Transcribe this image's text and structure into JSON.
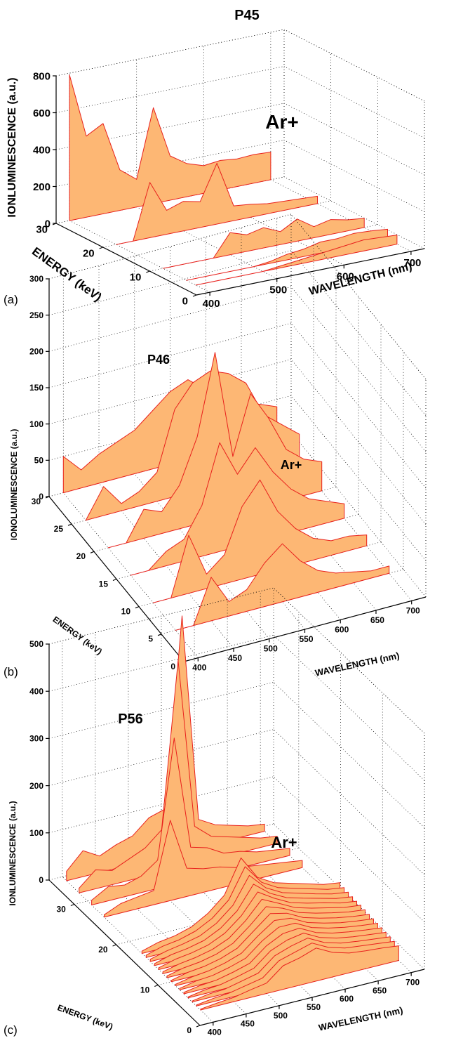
{
  "figure": {
    "fill_color": "#FDB774",
    "edge_color": "#E8201C",
    "ridge_highlight_color": "#FFE600"
  },
  "chart_data": [
    {
      "type": "waterfall3d",
      "panel": "(a)",
      "title": "P45",
      "annotation": "Ar+",
      "xlabel": "WAVELENGTH (nm)",
      "ylabel": "ENERGY (keV)",
      "zlabel": "IONLUMINESCENCE (a.u.)",
      "xlim": [
        380,
        720
      ],
      "ylim": [
        0,
        30
      ],
      "zlim": [
        0,
        800
      ],
      "xticks": [
        "400",
        "500",
        "600",
        "700"
      ],
      "yticks": [
        "0",
        "10",
        "20",
        "30"
      ],
      "zticks": [
        "0",
        "200",
        "400",
        "600",
        "800"
      ],
      "x": [
        400,
        425,
        450,
        475,
        500,
        525,
        550,
        575,
        600,
        625,
        650,
        675,
        700
      ],
      "series": [
        {
          "energy": 30,
          "values": [
            790,
            440,
            490,
            220,
            150,
            520,
            240,
            180,
            150,
            160,
            150,
            155,
            150
          ]
        },
        {
          "energy": 20,
          "values": [
            0,
            0,
            300,
            130,
            160,
            140,
            330,
            80,
            70,
            55,
            50,
            45,
            40
          ]
        },
        {
          "energy": 10,
          "values": [
            0,
            0,
            0,
            0,
            120,
            90,
            110,
            70,
            120,
            60,
            80,
            60,
            50
          ]
        },
        {
          "energy": 5,
          "values": [
            0,
            0,
            0,
            0,
            0,
            10,
            30,
            40,
            60,
            60,
            70,
            65,
            55
          ]
        },
        {
          "energy": 3,
          "values": [
            0,
            0,
            0,
            0,
            0,
            10,
            20,
            30,
            40,
            50,
            60,
            55,
            50
          ]
        }
      ]
    },
    {
      "type": "waterfall3d",
      "panel": "(b)",
      "title": "P46",
      "annotation": "Ar+",
      "xlabel": "WAVELENGTH (nm)",
      "ylabel": "ENERGY (keV)",
      "zlabel": "IONOLUMINESCENCE (a.u.)",
      "xlim": [
        380,
        720
      ],
      "ylim": [
        0,
        30
      ],
      "zlim": [
        0,
        300
      ],
      "xticks": [
        "400",
        "450",
        "500",
        "550",
        "600",
        "650",
        "700"
      ],
      "yticks": [
        "0",
        "5",
        "10",
        "15",
        "20",
        "25",
        "30"
      ],
      "zticks": [
        "0",
        "50",
        "100",
        "150",
        "200",
        "250",
        "300"
      ],
      "x": [
        400,
        425,
        450,
        475,
        500,
        525,
        550,
        575,
        600,
        625,
        650,
        675,
        700
      ],
      "series": [
        {
          "energy": 30,
          "values": [
            50,
            25,
            40,
            50,
            60,
            80,
            100,
            110,
            90,
            80,
            60,
            50,
            40
          ]
        },
        {
          "energy": 25,
          "values": [
            0,
            40,
            10,
            20,
            40,
            120,
            150,
            160,
            150,
            130,
            80,
            60,
            40
          ]
        },
        {
          "energy": 20,
          "values": [
            0,
            0,
            40,
            30,
            60,
            120,
            230,
            80,
            160,
            120,
            70,
            50,
            40
          ]
        },
        {
          "energy": 15,
          "values": [
            0,
            0,
            20,
            30,
            70,
            150,
            100,
            130,
            90,
            60,
            40,
            30,
            20
          ]
        },
        {
          "energy": 10,
          "values": [
            0,
            0,
            80,
            20,
            40,
            100,
            130,
            80,
            50,
            30,
            20,
            20,
            15
          ]
        },
        {
          "energy": 5,
          "values": [
            0,
            0,
            60,
            20,
            30,
            60,
            80,
            50,
            30,
            20,
            15,
            10,
            10
          ]
        }
      ]
    },
    {
      "type": "waterfall3d",
      "panel": "(c)",
      "title": "P56",
      "annotation": "Ar+",
      "xlabel": "WAVELENGTH (nm)",
      "ylabel": "ENERGY (keV)",
      "zlabel": "IONLUMINESCENCE (a.u.)",
      "xlim": [
        380,
        720
      ],
      "ylim": [
        0,
        36
      ],
      "zlim": [
        0,
        500
      ],
      "xticks": [
        "400",
        "450",
        "500",
        "550",
        "600",
        "650",
        "700"
      ],
      "yticks": [
        "0",
        "10",
        "20",
        "30"
      ],
      "zticks": [
        "0",
        "100",
        "200",
        "300",
        "400",
        "500"
      ],
      "x": [
        400,
        425,
        450,
        475,
        500,
        525,
        550,
        575,
        600,
        625,
        650,
        675,
        700
      ],
      "series": [
        {
          "energy": 35,
          "values": [
            20,
            55,
            35,
            50,
            60,
            90,
            100,
            520,
            60,
            40,
            30,
            20,
            15
          ]
        },
        {
          "energy": 32,
          "values": [
            10,
            40,
            30,
            45,
            60,
            90,
            440,
            80,
            50,
            40,
            30,
            20,
            15
          ]
        },
        {
          "energy": 29,
          "values": [
            10,
            30,
            25,
            35,
            60,
            310,
            70,
            60,
            40,
            35,
            25,
            20,
            15
          ]
        },
        {
          "energy": 26,
          "values": [
            5,
            20,
            25,
            30,
            170,
            60,
            50,
            45,
            35,
            30,
            25,
            20,
            15
          ]
        },
        {
          "energy": 17,
          "values": [
            5,
            15,
            20,
            30,
            50,
            80,
            150,
            100,
            80,
            70,
            60,
            50,
            45
          ]
        },
        {
          "energy": 16,
          "values": [
            5,
            15,
            20,
            30,
            48,
            78,
            140,
            98,
            78,
            68,
            58,
            48,
            43
          ]
        },
        {
          "energy": 15,
          "values": [
            5,
            14,
            20,
            28,
            46,
            75,
            130,
            95,
            76,
            66,
            56,
            47,
            42
          ]
        },
        {
          "energy": 14,
          "values": [
            4,
            14,
            19,
            27,
            44,
            72,
            120,
            92,
            74,
            64,
            55,
            46,
            41
          ]
        },
        {
          "energy": 13,
          "values": [
            4,
            13,
            18,
            26,
            42,
            70,
            112,
            90,
            72,
            62,
            54,
            45,
            40
          ]
        },
        {
          "energy": 12,
          "values": [
            4,
            12,
            17,
            25,
            40,
            68,
            105,
            88,
            70,
            60,
            52,
            44,
            40
          ]
        },
        {
          "energy": 11,
          "values": [
            4,
            12,
            16,
            24,
            38,
            66,
            98,
            86,
            68,
            58,
            50,
            43,
            39
          ]
        },
        {
          "energy": 10,
          "values": [
            3,
            11,
            15,
            23,
            36,
            64,
            92,
            84,
            66,
            56,
            48,
            42,
            38
          ]
        },
        {
          "energy": 9,
          "values": [
            3,
            10,
            14,
            22,
            34,
            62,
            86,
            82,
            64,
            54,
            46,
            41,
            37
          ]
        },
        {
          "energy": 8,
          "values": [
            3,
            10,
            13,
            21,
            32,
            60,
            80,
            80,
            62,
            52,
            45,
            40,
            36
          ]
        },
        {
          "energy": 7,
          "values": [
            3,
            9,
            12,
            20,
            30,
            58,
            75,
            78,
            60,
            50,
            44,
            39,
            35
          ]
        },
        {
          "energy": 6,
          "values": [
            2,
            8,
            11,
            19,
            28,
            56,
            70,
            76,
            58,
            48,
            42,
            38,
            34
          ]
        },
        {
          "energy": 5,
          "values": [
            2,
            8,
            10,
            18,
            26,
            54,
            66,
            74,
            56,
            46,
            41,
            37,
            33
          ]
        },
        {
          "energy": 4,
          "values": [
            2,
            7,
            10,
            17,
            24,
            52,
            62,
            72,
            54,
            44,
            40,
            36,
            32
          ]
        },
        {
          "energy": 3,
          "values": [
            2,
            6,
            9,
            16,
            22,
            50,
            58,
            70,
            52,
            42,
            38,
            35,
            31
          ]
        }
      ]
    }
  ]
}
